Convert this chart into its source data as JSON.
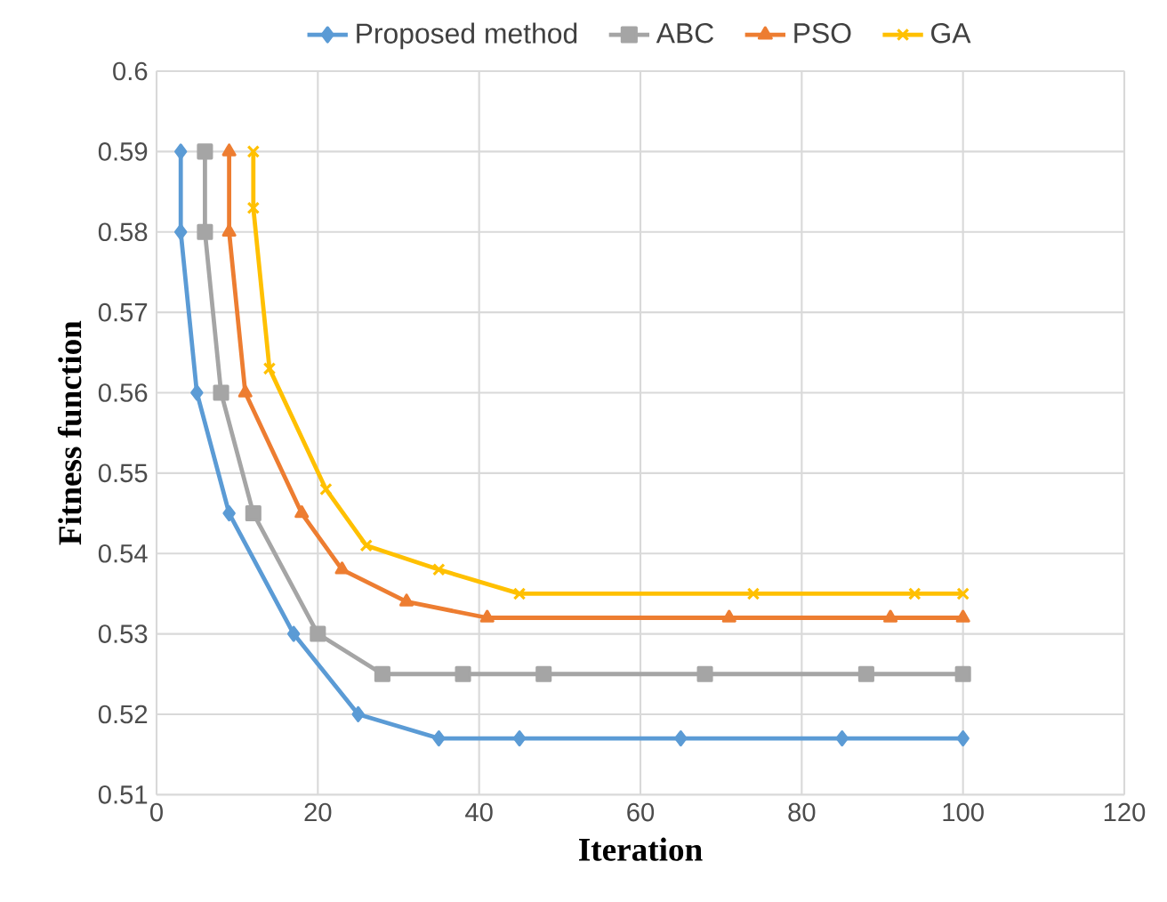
{
  "chart_data": {
    "type": "line",
    "xlabel": "Iteration",
    "ylabel": "Fitness function",
    "xlim": [
      0,
      120
    ],
    "xticks": [
      0,
      20,
      40,
      60,
      80,
      100,
      120
    ],
    "ylim": [
      0.51,
      0.6
    ],
    "yticks": [
      0.51,
      0.52,
      0.53,
      0.54,
      0.55,
      0.56,
      0.57,
      0.58,
      0.59,
      0.6
    ],
    "grid": true,
    "legend": "top",
    "line_style": "solid",
    "series": [
      {
        "name": "Proposed method",
        "color": "#5b9bd5",
        "marker": "diamond",
        "x": [
          3,
          3,
          5,
          9,
          17,
          25,
          35,
          45,
          65,
          85,
          100
        ],
        "values": [
          0.59,
          0.58,
          0.56,
          0.545,
          0.53,
          0.52,
          0.517,
          0.517,
          0.517,
          0.517,
          0.517
        ]
      },
      {
        "name": "ABC",
        "color": "#a5a5a5",
        "marker": "square",
        "x": [
          6,
          6,
          8,
          12,
          20,
          28,
          38,
          48,
          68,
          88,
          100
        ],
        "values": [
          0.59,
          0.58,
          0.56,
          0.545,
          0.53,
          0.525,
          0.525,
          0.525,
          0.525,
          0.525,
          0.525
        ]
      },
      {
        "name": "PSO",
        "color": "#ed7d31",
        "marker": "triangle",
        "x": [
          9,
          9,
          11,
          18,
          23,
          31,
          41,
          71,
          91,
          100
        ],
        "values": [
          0.59,
          0.58,
          0.56,
          0.545,
          0.538,
          0.534,
          0.532,
          0.532,
          0.532,
          0.532
        ]
      },
      {
        "name": "GA",
        "color": "#ffc000",
        "marker": "cross",
        "x": [
          12,
          12,
          14,
          21,
          26,
          35,
          45,
          74,
          94,
          100
        ],
        "values": [
          0.59,
          0.583,
          0.563,
          0.548,
          0.541,
          0.538,
          0.535,
          0.535,
          0.535,
          0.535
        ]
      }
    ]
  }
}
